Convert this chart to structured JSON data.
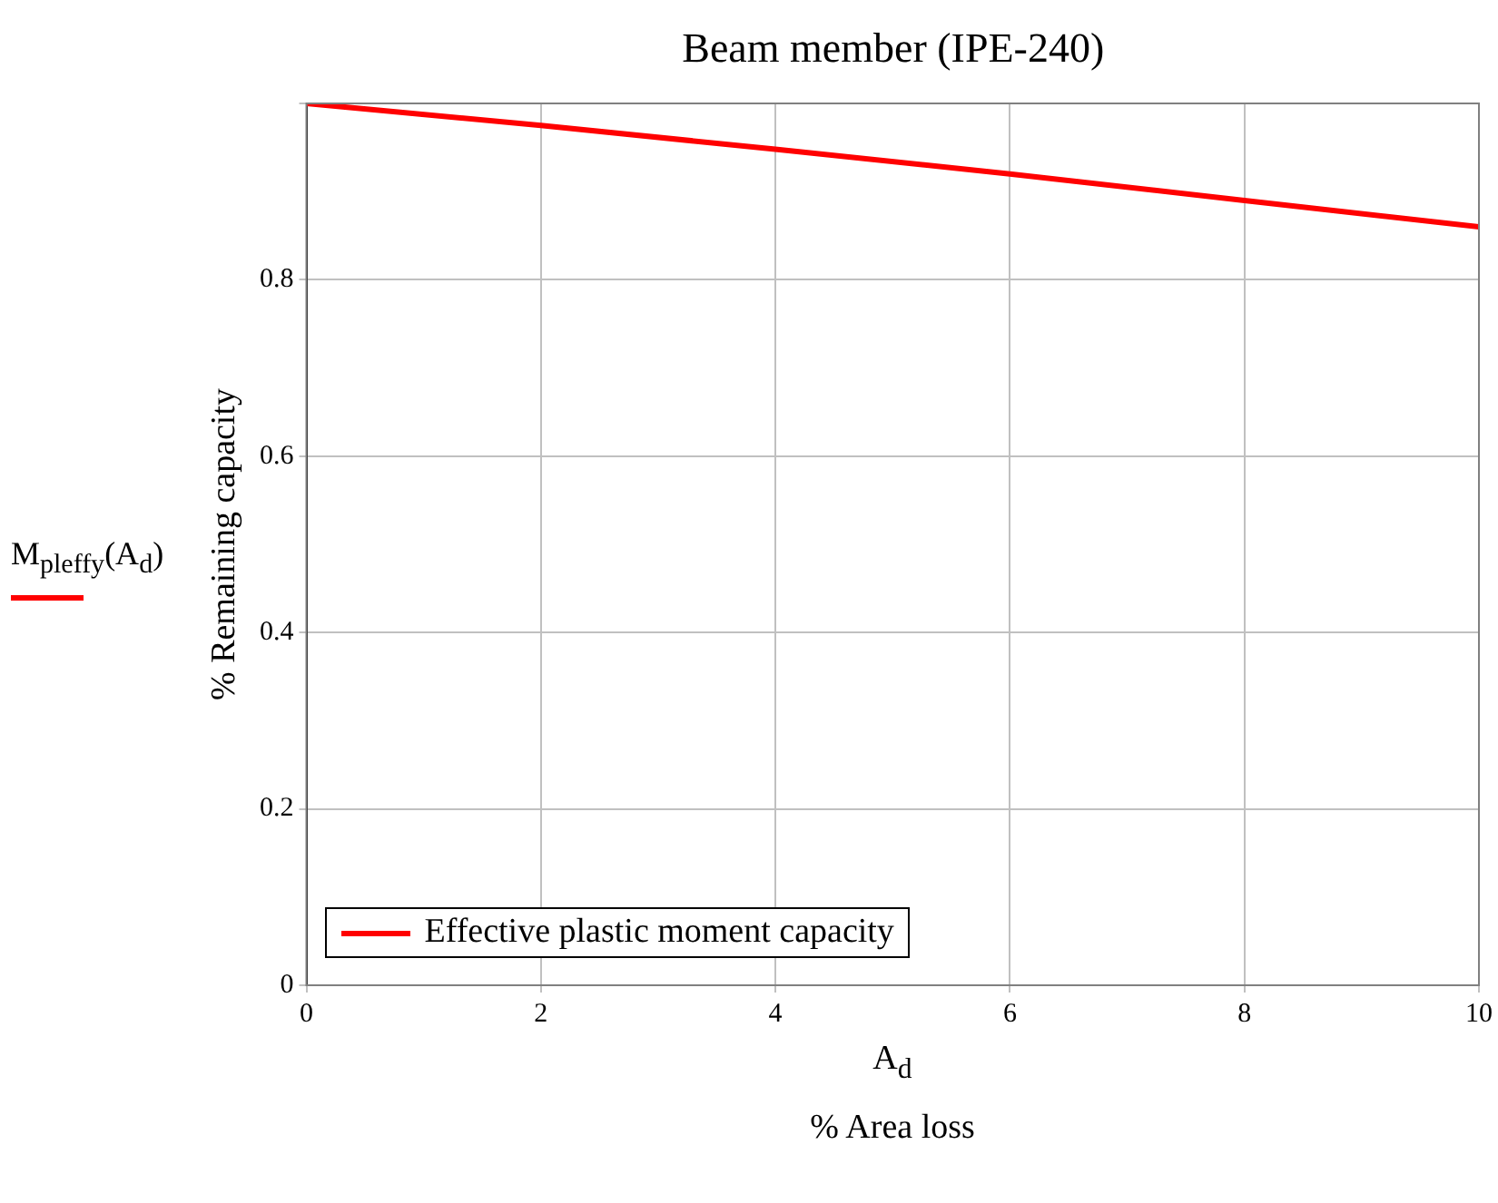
{
  "chart_data": {
    "type": "line",
    "title": "Beam member (IPE-240)",
    "xlabel": "A$_{d}$\n% Area loss",
    "ylabel": "% Remaining capacity",
    "annotations": [
      "M$_{pleffy}$(A$_{d}$)"
    ],
    "x": [
      0,
      2,
      4,
      6,
      8,
      10
    ],
    "series": [
      {
        "name": "Effective plastic moment capacity",
        "color": "#ff0000",
        "values": [
          1,
          0.975,
          0.948,
          0.92,
          0.89,
          0.86
        ]
      }
    ],
    "xlim": [
      0,
      10
    ],
    "xticks": [
      0,
      2,
      4,
      6,
      8,
      10
    ],
    "ylim": [
      0,
      1
    ],
    "yticks": [
      0,
      0.2,
      0.4,
      0.6,
      0.8,
      {
        "value": 1,
        "label": null
      }
    ],
    "grid": true,
    "legend": "bottom left",
    "marker": "none",
    "line_style": "solid"
  }
}
